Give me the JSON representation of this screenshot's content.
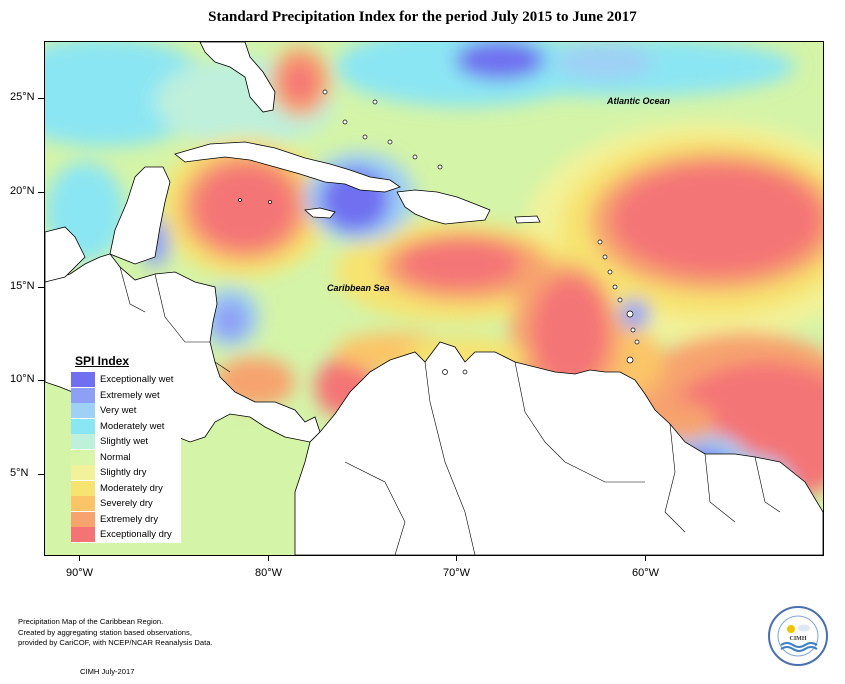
{
  "title": "Standard Precipitation Index for the period July 2015 to June 2017",
  "map": {
    "labels": {
      "atlantic": "Atlantic Ocean",
      "caribbean": "Caribbean Sea"
    },
    "lat_labels": [
      "25°N",
      "20°N",
      "15°N",
      "10°N",
      "5°N"
    ],
    "lon_labels": [
      "90°W",
      "80°W",
      "70°W",
      "60°W"
    ]
  },
  "legend": {
    "title": "SPI Index",
    "items": [
      {
        "label": "Exceptionally wet",
        "color": "#6f6ff0"
      },
      {
        "label": "Extremely wet",
        "color": "#8ea0f5"
      },
      {
        "label": "Very wet",
        "color": "#9fd0f5"
      },
      {
        "label": "Moderately wet",
        "color": "#8be6f3"
      },
      {
        "label": "Slightly wet",
        "color": "#bef0dc"
      },
      {
        "label": "Normal",
        "color": "#d9f5a7"
      },
      {
        "label": "Slightly dry",
        "color": "#f2f29a"
      },
      {
        "label": "Moderately dry",
        "color": "#f7e36f"
      },
      {
        "label": "Severely dry",
        "color": "#fbc467"
      },
      {
        "label": "Extremely dry",
        "color": "#f7a36e"
      },
      {
        "label": "Exceptionally dry",
        "color": "#f47476"
      }
    ]
  },
  "footer": {
    "lines": [
      "Precipitation Map of the Caribbean Region.",
      "Created by aggregating station based observations,",
      "provided by CariCOF, with NCEP/NCAR Reanalysis Data."
    ],
    "credit": "CIMH July-2017"
  },
  "logo": {
    "text": "CIMH"
  }
}
